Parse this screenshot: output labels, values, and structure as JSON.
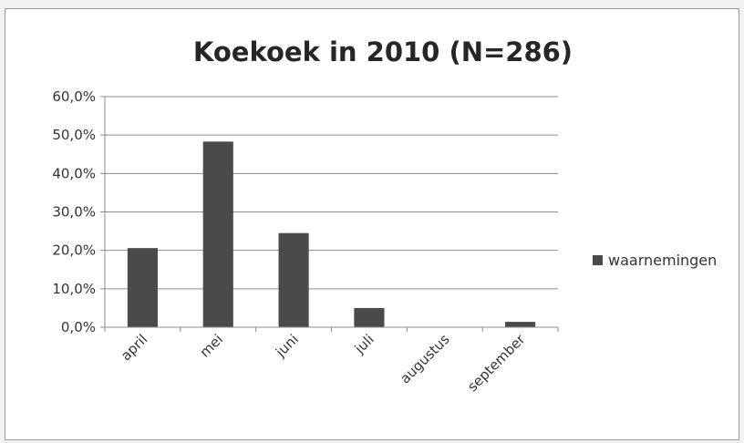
{
  "chart_data": {
    "type": "bar",
    "title": "Koekoek in 2010 (N=286)",
    "categories": [
      "april",
      "mei",
      "juni",
      "juli",
      "augustus",
      "september"
    ],
    "series": [
      {
        "name": "waarnemingen",
        "values": [
          20.6,
          48.3,
          24.5,
          5.0,
          0.0,
          1.4
        ]
      }
    ],
    "y_ticks": [
      "0,0%",
      "10,0%",
      "20,0%",
      "30,0%",
      "40,0%",
      "50,0%",
      "60,0%"
    ],
    "ylim": [
      0,
      60
    ],
    "grid": true,
    "legend_position": "right",
    "bar_color": "#4a4a4a"
  }
}
